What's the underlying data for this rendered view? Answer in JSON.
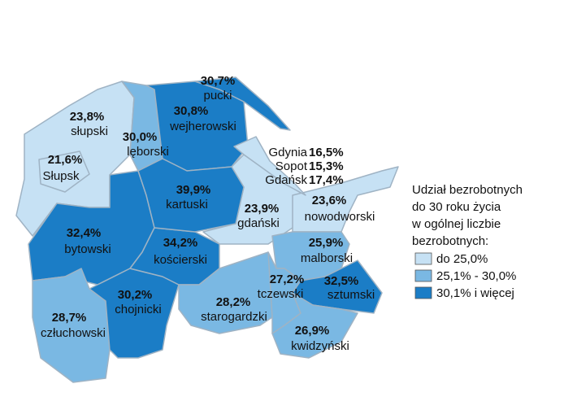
{
  "legend": {
    "title_lines": [
      "Udział bezrobotnych",
      "do 30 roku życia",
      "w ogólnej liczbie",
      "bezrobotnych:"
    ],
    "classes": [
      {
        "label": "do 25,0%",
        "color": "#c6e1f4"
      },
      {
        "label": "25,1% - 30,0%",
        "color": "#7ab8e3"
      },
      {
        "label": "30,1% i więcej",
        "color": "#1b7dc6"
      }
    ]
  },
  "regions": [
    {
      "name": "słupski",
      "label": "23,8%",
      "class": 0
    },
    {
      "name": "Słupsk",
      "label": "21,6%",
      "class": 0
    },
    {
      "name": "lęborski",
      "label": "30,0%",
      "class": 1
    },
    {
      "name": "wejherowski",
      "label": "30,8%",
      "class": 2
    },
    {
      "name": "pucki",
      "label": "30,7%",
      "class": 2
    },
    {
      "name": "bytowski",
      "label": "32,4%",
      "class": 2
    },
    {
      "name": "człuchowski",
      "label": "28,7%",
      "class": 1
    },
    {
      "name": "chojnicki",
      "label": "30,2%",
      "class": 2
    },
    {
      "name": "kościerski",
      "label": "34,2%",
      "class": 2
    },
    {
      "name": "starogardzki",
      "label": "28,2%",
      "class": 1
    },
    {
      "name": "gdański",
      "label": "23,9%",
      "class": 0
    },
    {
      "name": "kartuski",
      "label": "39,9%",
      "class": 2
    },
    {
      "name": "nowodworski",
      "label": "23,6%",
      "class": 0
    },
    {
      "name": "malborski",
      "label": "25,9%",
      "class": 1
    },
    {
      "name": "tczewski",
      "label": "27,2%",
      "class": 1
    },
    {
      "name": "sztumski",
      "label": "32,5%",
      "class": 2
    },
    {
      "name": "kwidzyński",
      "label": "26,9%",
      "class": 1
    }
  ],
  "cities": {
    "class": 0,
    "items": [
      {
        "name": "Gdynia",
        "label": "16,5%"
      },
      {
        "name": "Sopot",
        "label": "15,3%"
      },
      {
        "name": "Gdańsk",
        "label": "17,4%"
      }
    ]
  }
}
